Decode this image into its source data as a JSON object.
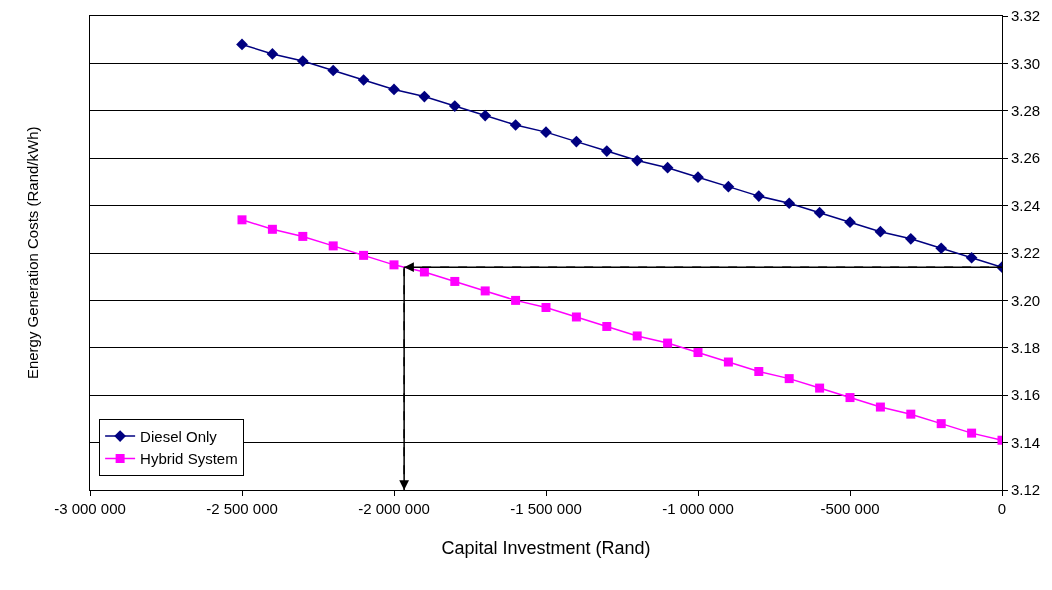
{
  "chart_data": {
    "type": "line",
    "xlabel": "Capital Investment (Rand)",
    "ylabel": "Energy Generation Costs (Rand/kWh)",
    "x": [
      -2500000,
      -2400000,
      -2300000,
      -2200000,
      -2100000,
      -2000000,
      -1900000,
      -1800000,
      -1700000,
      -1600000,
      -1500000,
      -1400000,
      -1300000,
      -1200000,
      -1100000,
      -1000000,
      -900000,
      -800000,
      -700000,
      -600000,
      -500000,
      -400000,
      -300000,
      -200000,
      -100000,
      0
    ],
    "series": [
      {
        "name": "Diesel Only",
        "color": "#000080",
        "marker": "diamond",
        "values": [
          3.308,
          3.304,
          3.301,
          3.297,
          3.293,
          3.289,
          3.286,
          3.282,
          3.278,
          3.274,
          3.271,
          3.267,
          3.263,
          3.259,
          3.256,
          3.252,
          3.248,
          3.244,
          3.241,
          3.237,
          3.233,
          3.229,
          3.226,
          3.222,
          3.218,
          3.214
        ]
      },
      {
        "name": "Hybrid System",
        "color": "#ff00ff",
        "marker": "square",
        "values": [
          3.234,
          3.23,
          3.227,
          3.223,
          3.219,
          3.215,
          3.212,
          3.208,
          3.204,
          3.2,
          3.197,
          3.193,
          3.189,
          3.185,
          3.182,
          3.178,
          3.174,
          3.17,
          3.167,
          3.163,
          3.159,
          3.155,
          3.152,
          3.148,
          3.144,
          3.141
        ]
      }
    ],
    "xlim": [
      -3000000,
      0
    ],
    "xticks": [
      {
        "value": -3000000,
        "label": "-3 000 000"
      },
      {
        "value": -2500000,
        "label": "-2 500 000"
      },
      {
        "value": -2000000,
        "label": "-2 000 000"
      },
      {
        "value": -1500000,
        "label": "-1 500 000"
      },
      {
        "value": -1000000,
        "label": "-1 000 000"
      },
      {
        "value": -500000,
        "label": "-500 000"
      },
      0
    ],
    "ylim": [
      3.12,
      3.32
    ],
    "yticks": [
      {
        "value": 3.12,
        "label": "3.12"
      },
      {
        "value": 3.14,
        "label": "3.14"
      },
      {
        "value": 3.16,
        "label": "3.16"
      },
      {
        "value": 3.18,
        "label": "3.18"
      },
      {
        "value": 3.2,
        "label": "3.20"
      },
      {
        "value": 3.22,
        "label": "3.22"
      },
      {
        "value": 3.24,
        "label": "3.24"
      },
      {
        "value": 3.26,
        "label": "3.26"
      },
      {
        "value": 3.28,
        "label": "3.28"
      },
      {
        "value": 3.3,
        "label": "3.30"
      },
      {
        "value": 3.32,
        "label": "3.32"
      }
    ],
    "grid": "y",
    "legend": "bottom left",
    "line_style": "solid"
  }
}
